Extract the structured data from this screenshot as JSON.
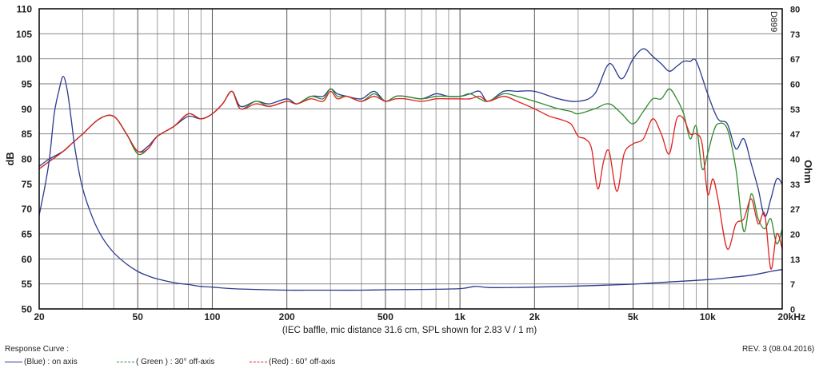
{
  "chart_data": {
    "type": "line",
    "x_scale": "log",
    "xlim": [
      20,
      20000
    ],
    "ylim_left": [
      50,
      110
    ],
    "ylim_right": [
      0,
      80
    ],
    "ylabel": "dB",
    "ylabel_right": "Ohm",
    "xlabel": "(IEC baffle, mic distance 31.6 cm, SPL shown for 2.83 V / 1 m)",
    "watermark": "D899",
    "x_ticks": [
      {
        "v": 20,
        "label": "20"
      },
      {
        "v": 50,
        "label": "50"
      },
      {
        "v": 100,
        "label": "100"
      },
      {
        "v": 200,
        "label": "200"
      },
      {
        "v": 500,
        "label": "500"
      },
      {
        "v": 1000,
        "label": "1k"
      },
      {
        "v": 2000,
        "label": "2k"
      },
      {
        "v": 5000,
        "label": "5k"
      },
      {
        "v": 10000,
        "label": "10k"
      },
      {
        "v": 20000,
        "label": "20kHz"
      }
    ],
    "y_ticks_left": [
      "110",
      "105",
      "100",
      "95",
      "90",
      "85",
      "80",
      "75",
      "70",
      "65",
      "60",
      "55",
      "50"
    ],
    "y_ticks_right": [
      "80",
      "73",
      "67",
      "60",
      "53",
      "47",
      "40",
      "33",
      "27",
      "20",
      "13",
      "7",
      "0"
    ],
    "grid": true,
    "legend_title": "Response Curve :",
    "legend": [
      {
        "label": "(Blue) : on axis",
        "color": "#2b3a8f"
      },
      {
        "label": "( Green ) : 30° off-axis",
        "color": "#2e8b2e"
      },
      {
        "label": "(Red) : 60° off-axis",
        "color": "#e0201e"
      }
    ],
    "revision": "REV. 3 (08.04.2016)",
    "series": [
      {
        "color": "#2b3a8f",
        "axis": "left",
        "x": [
          20,
          22,
          25,
          27,
          30,
          35,
          40,
          45,
          50,
          55,
          60,
          70,
          80,
          90,
          100,
          110,
          120,
          130,
          150,
          170,
          200,
          220,
          250,
          280,
          300,
          320,
          350,
          400,
          450,
          500,
          550,
          600,
          700,
          800,
          900,
          1000,
          1100,
          1200,
          1300,
          1500,
          1700,
          2000,
          2500,
          3000,
          3500,
          4000,
          4500,
          5000,
          5500,
          6000,
          6500,
          7000,
          7500,
          8000,
          8500,
          9000,
          10000,
          11000,
          12000,
          13000,
          14000,
          15000,
          16000,
          17000,
          18000,
          19000,
          20000
        ],
        "y": [
          78.5,
          80,
          81.5,
          83,
          85,
          88,
          88.5,
          85,
          81.5,
          82.5,
          84.5,
          86.5,
          88.5,
          88,
          89,
          91,
          93.5,
          90.5,
          91.5,
          91,
          92,
          91,
          92.5,
          92.5,
          94,
          93,
          92.5,
          92,
          93.5,
          91.5,
          92.5,
          92.5,
          92,
          93,
          92.5,
          92.5,
          93,
          93.5,
          91.5,
          93.5,
          93.5,
          93.5,
          92,
          91.5,
          93,
          99,
          96,
          100,
          102,
          100.5,
          99,
          97.5,
          98.5,
          99.5,
          99.5,
          99.5,
          93,
          88,
          87,
          82,
          84,
          79,
          74,
          68.5,
          72,
          76,
          75
        ]
      },
      {
        "color": "#2e8b2e",
        "axis": "left",
        "x": [
          20,
          22,
          25,
          27,
          30,
          35,
          40,
          45,
          50,
          55,
          60,
          70,
          80,
          90,
          100,
          110,
          120,
          130,
          150,
          170,
          200,
          220,
          250,
          280,
          300,
          320,
          350,
          400,
          450,
          500,
          550,
          600,
          700,
          800,
          900,
          1000,
          1100,
          1200,
          1300,
          1500,
          1700,
          2000,
          2500,
          2800,
          3000,
          3500,
          4000,
          4500,
          5000,
          5500,
          6000,
          6500,
          7000,
          7500,
          8000,
          8500,
          9000,
          9500,
          10000,
          10500,
          11000,
          12000,
          13000,
          14000,
          15000,
          16000,
          17000,
          18000,
          19000,
          20000
        ],
        "y": [
          78,
          79.5,
          81.5,
          83,
          85,
          88,
          88.5,
          85,
          81,
          82,
          84.5,
          86.5,
          89,
          88,
          89,
          91,
          93.5,
          90,
          91.5,
          90.5,
          91.5,
          91,
          92.5,
          92,
          94,
          92.5,
          92.5,
          91.5,
          93,
          91.5,
          92.5,
          92.5,
          92,
          92.5,
          92.5,
          92.5,
          93,
          92,
          91.5,
          93,
          92.5,
          91.5,
          90,
          89.5,
          89,
          90,
          91,
          89,
          87,
          89.5,
          92,
          92,
          94,
          92,
          89,
          84,
          86.5,
          78,
          81,
          85,
          87,
          86,
          78,
          65.5,
          73,
          68,
          66,
          68,
          63,
          66
        ]
      },
      {
        "color": "#e0201e",
        "axis": "left",
        "x": [
          20,
          22,
          25,
          27,
          30,
          35,
          40,
          45,
          50,
          55,
          60,
          70,
          80,
          90,
          100,
          110,
          120,
          130,
          150,
          170,
          200,
          220,
          250,
          280,
          300,
          320,
          350,
          400,
          450,
          500,
          550,
          600,
          700,
          800,
          900,
          1000,
          1100,
          1200,
          1300,
          1500,
          1700,
          2000,
          2300,
          2500,
          2800,
          3000,
          3200,
          3400,
          3600,
          3800,
          4000,
          4300,
          4600,
          5000,
          5500,
          6000,
          6500,
          7000,
          7500,
          8000,
          8500,
          9000,
          9500,
          10000,
          10500,
          11000,
          12000,
          13000,
          14000,
          15000,
          16000,
          17000,
          18000,
          19000,
          20000
        ],
        "y": [
          78,
          79.5,
          81.5,
          83,
          85,
          88,
          88.5,
          85,
          81.5,
          82,
          84.5,
          86.5,
          89,
          88,
          89,
          91,
          93.5,
          90,
          91,
          90.5,
          91.5,
          91,
          92,
          91.5,
          93.5,
          92,
          92.5,
          91.5,
          92.5,
          91.5,
          92,
          92,
          91.5,
          92,
          92,
          92,
          92,
          92.5,
          91.5,
          92.5,
          91.5,
          90,
          88.5,
          88,
          87,
          84.5,
          84,
          82,
          74,
          79.5,
          81.5,
          73.5,
          81,
          83,
          84,
          88,
          85,
          81,
          88,
          88,
          85,
          85,
          83,
          73,
          76,
          72,
          62,
          67,
          68,
          72,
          67,
          69,
          58,
          65,
          62
        ]
      },
      {
        "color": "#2b3a8f",
        "axis": "right",
        "x": [
          20,
          21,
          22,
          23,
          24,
          25,
          26,
          27,
          28,
          30,
          33,
          36,
          40,
          45,
          50,
          55,
          60,
          70,
          80,
          90,
          100,
          120,
          150,
          200,
          250,
          300,
          400,
          500,
          700,
          1000,
          1150,
          1300,
          1600,
          2000,
          3000,
          5000,
          7000,
          10000,
          12000,
          15000,
          18000,
          20000
        ],
        "y": [
          25,
          32,
          40,
          52,
          58,
          62,
          58,
          50,
          42,
          32,
          24,
          19,
          15,
          12,
          10,
          8.8,
          8,
          7,
          6.5,
          6,
          5.8,
          5.4,
          5.2,
          5,
          5,
          5,
          5,
          5.1,
          5.2,
          5.4,
          6,
          5.7,
          5.7,
          5.8,
          6.1,
          6.6,
          7.2,
          7.8,
          8.3,
          9,
          10,
          10.5
        ]
      }
    ]
  }
}
